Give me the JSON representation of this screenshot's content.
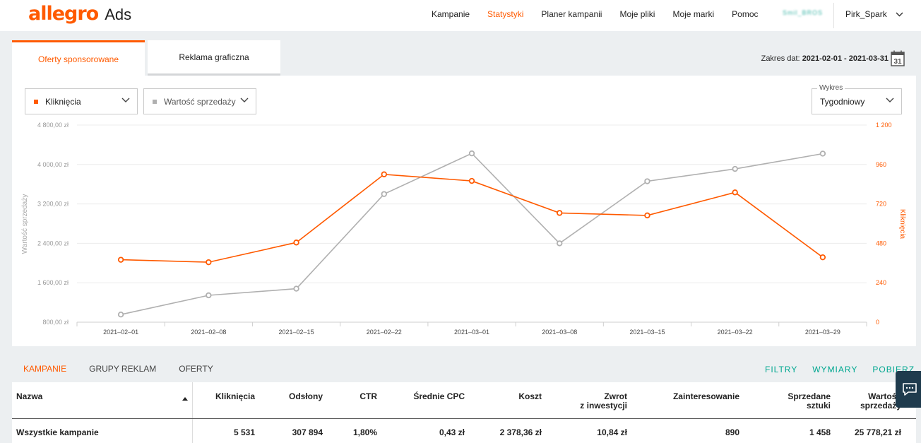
{
  "header": {
    "logo_brand": "allegro",
    "logo_product": "Ads",
    "nav": [
      "Kampanie",
      "Statystyki",
      "Planer kampanii",
      "Moje pliki",
      "Moje marki",
      "Pomoc"
    ],
    "active_nav": "Statystyki",
    "user_badge": "Smil_BROS",
    "user_name": "Pirk_Spark"
  },
  "tabs": {
    "sponsored": "Oferty sponsorowane",
    "display": "Reklama graficzna"
  },
  "date_range": {
    "label": "Zakres dat:",
    "value": "2021-02-01 - 2021-03-31",
    "calendar_day": "31"
  },
  "controls": {
    "metric1": "Kliknięcia",
    "metric2": "Wartość sprzedaży",
    "chart_select_label": "Wykres",
    "chart_select_value": "Tygodniowy"
  },
  "colors": {
    "accent": "#ff5a00",
    "secondary_series": "#b0b0b0",
    "action": "#00a790"
  },
  "chart_data": {
    "type": "line",
    "x": [
      "2021–02–01",
      "2021–02–08",
      "2021–02–15",
      "2021–02–22",
      "2021–03–01",
      "2021–03–08",
      "2021–03–15",
      "2021–03–22",
      "2021–03–29"
    ],
    "series": [
      {
        "name": "Kliknięcia",
        "axis": "right",
        "color": "#ff5a00",
        "values": [
          380,
          365,
          485,
          900,
          860,
          665,
          650,
          790,
          395
        ]
      },
      {
        "name": "Wartość sprzedaży",
        "axis": "left",
        "color": "#b0b0b0",
        "values": [
          955,
          1345,
          1480,
          3400,
          4225,
          2400,
          3660,
          3910,
          4220
        ]
      }
    ],
    "left_axis": {
      "label": "Wartość sprzedaży",
      "ticks": [
        "4 800,00 zł",
        "4 000,00 zł",
        "3 200,00 zł",
        "2 400,00 zł",
        "1 600,00 zł",
        "800,00 zł"
      ],
      "range": [
        800,
        4800
      ]
    },
    "right_axis": {
      "label": "Kliknięcia",
      "ticks": [
        "1 200",
        "960",
        "720",
        "480",
        "240",
        "0"
      ],
      "range": [
        0,
        1200
      ]
    },
    "grid": true
  },
  "lower_tabs": [
    "KAMPANIE",
    "GRUPY REKLAM",
    "OFERTY"
  ],
  "actions": [
    "FILTRY",
    "WYMIARY",
    "POBIERZ"
  ],
  "table": {
    "headers": {
      "name": "Nazwa",
      "clicks": "Kliknięcia",
      "impressions": "Odsłony",
      "ctr": "CTR",
      "cpc": "Średnie CPC",
      "cost": "Koszt",
      "roi_line1": "Zwrot",
      "roi_line2": "z inwestycji",
      "interest": "Zainteresowanie",
      "sold_line1": "Sprzedane",
      "sold_line2": "sztuki",
      "value_line1": "Wartość",
      "value_line2": "sprzedaży"
    },
    "row": {
      "name": "Wszystkie kampanie",
      "clicks": "5 531",
      "impressions": "307 894",
      "ctr": "1,80%",
      "cpc": "0,43 zł",
      "cost": "2 378,36 zł",
      "roi": "10,84 zł",
      "interest": "890",
      "sold": "1 458",
      "value": "25 778,21 zł"
    }
  }
}
